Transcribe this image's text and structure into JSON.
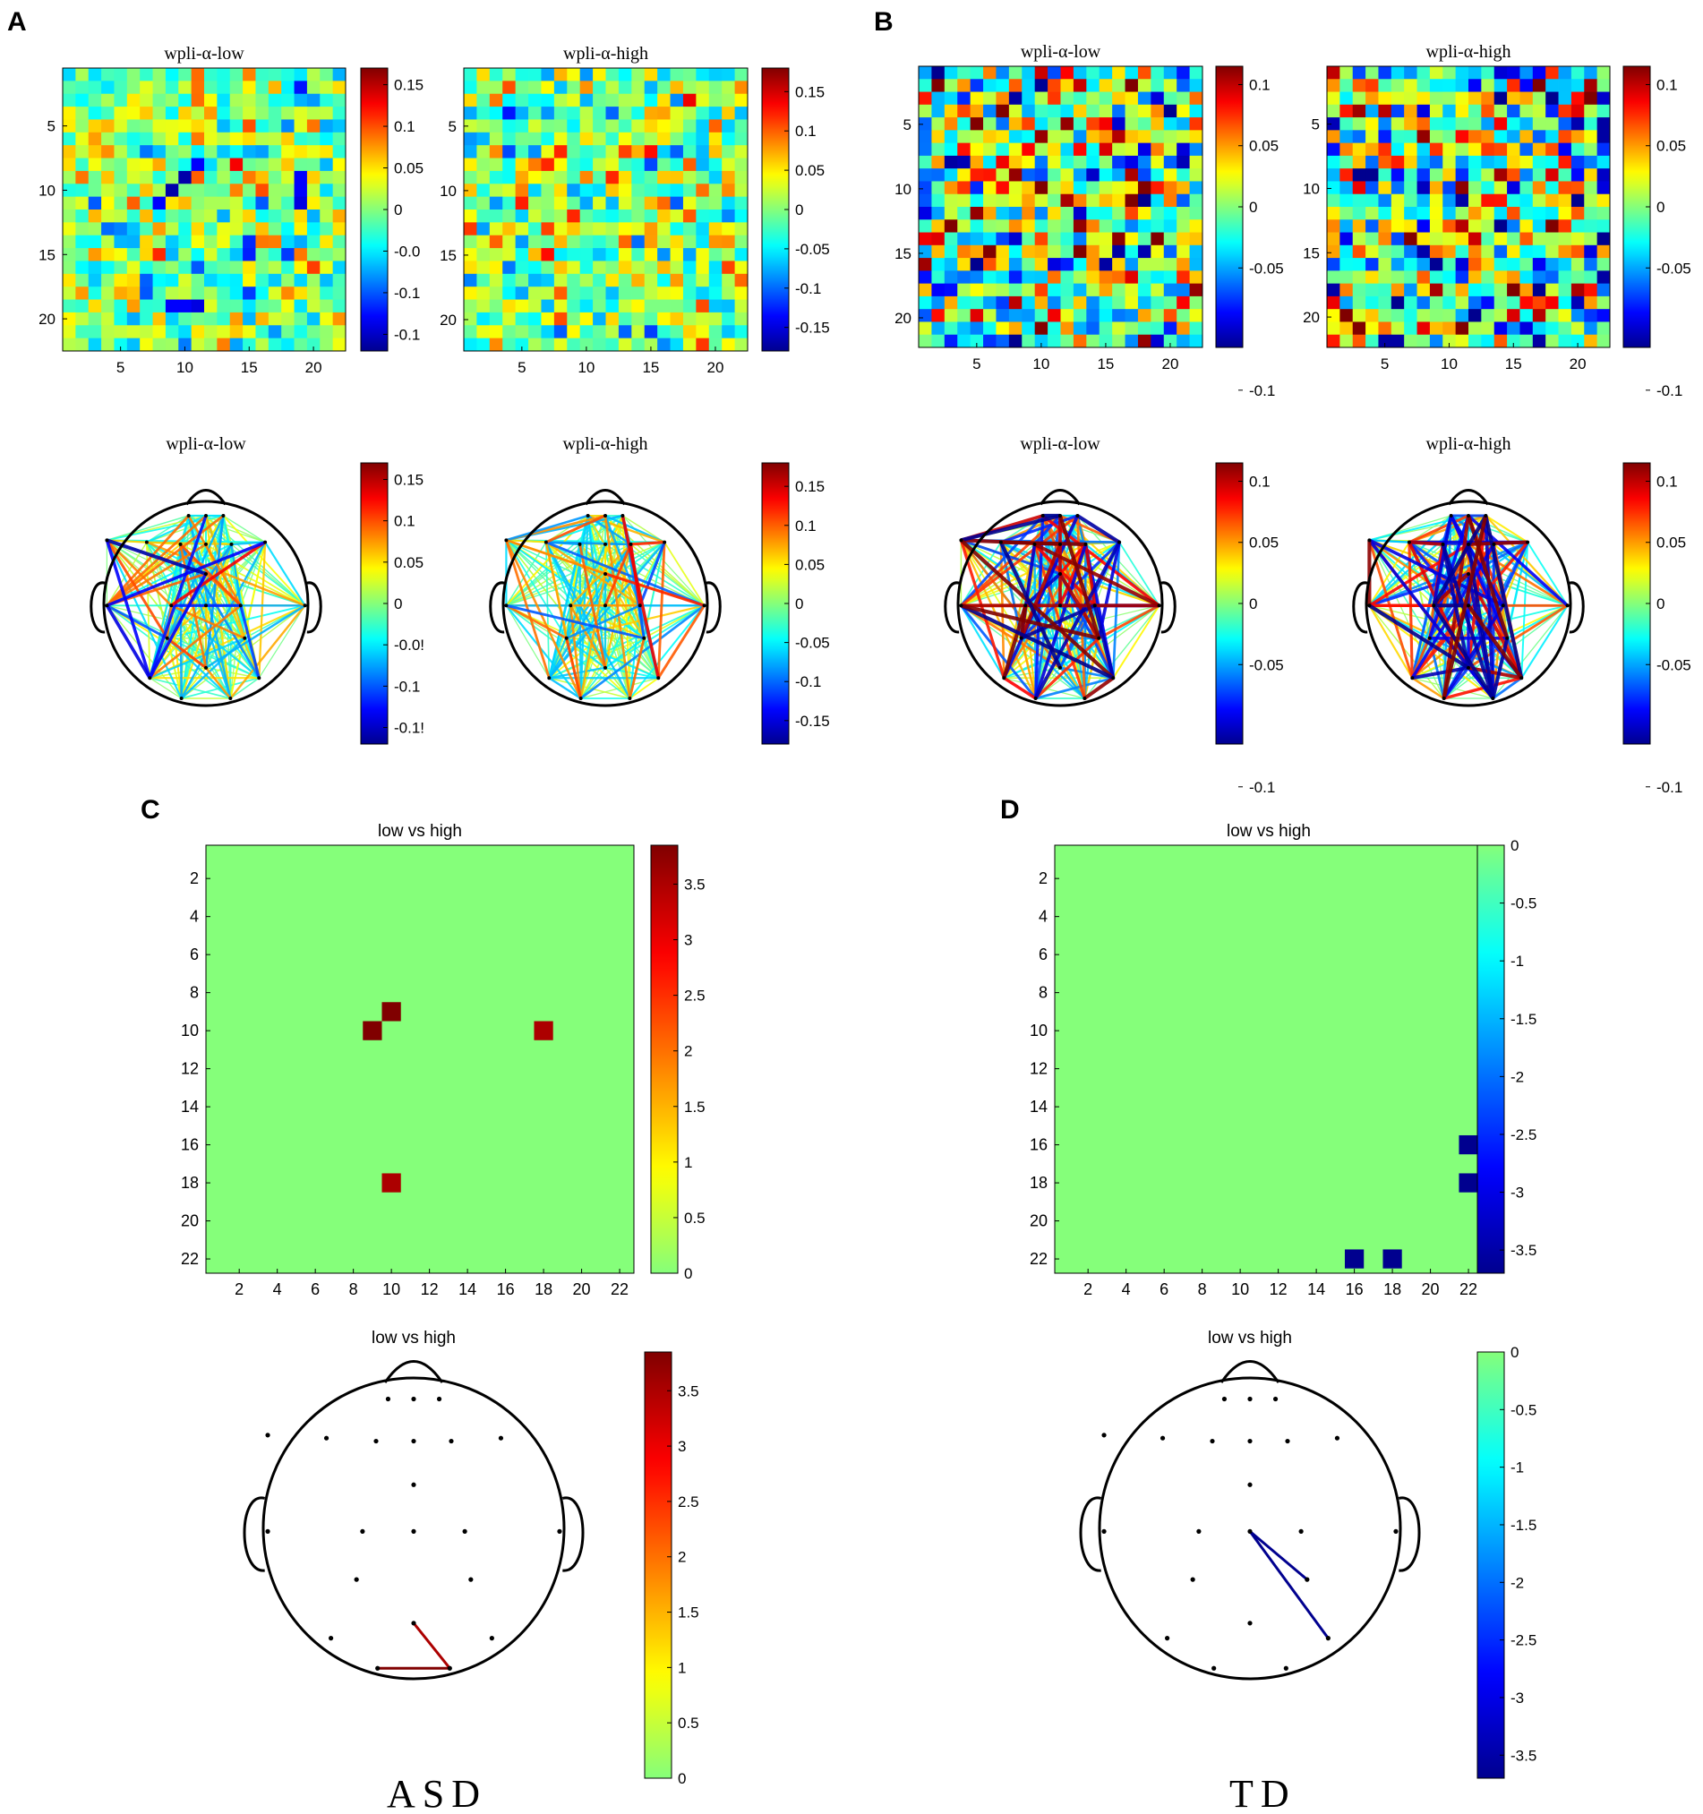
{
  "panels": {
    "A": "A",
    "B": "B",
    "C": "C",
    "D": "D"
  },
  "captions": {
    "asd": "ASD",
    "td": "TD"
  },
  "colormap": [
    "#00008f",
    "#0000ff",
    "#00ffff",
    "#ffff00",
    "#ff0000",
    "#800000"
  ],
  "chart_data": [
    {
      "id": "A-low-matrix",
      "panel": "A",
      "type": "heatmap",
      "title": "wpli-α-low",
      "n": 22,
      "x_ticks": [
        5,
        10,
        15,
        20
      ],
      "y_ticks": [
        5,
        10,
        15,
        20
      ],
      "clim": [
        -0.17,
        0.17
      ],
      "seed": 11,
      "scale": 0.045,
      "colorbar_ticks": [
        "0.15",
        "0.1",
        "0.05",
        "0",
        "-0.0",
        "-0.1",
        "-0.1"
      ],
      "highlights": [
        {
          "row": 9,
          "col": 8,
          "value": -0.16
        },
        {
          "row": 10,
          "col": 7,
          "value": -0.13
        },
        {
          "row": 9,
          "col": 18,
          "value": -0.14
        },
        {
          "row": 10,
          "col": 18,
          "value": -0.14
        },
        {
          "row": 18,
          "col": 8,
          "value": -0.13
        },
        {
          "row": 18,
          "col": 9,
          "value": -0.13
        },
        {
          "row": 14,
          "col": 14,
          "value": -0.12
        },
        {
          "row": 14,
          "col": 17,
          "value": -0.11
        },
        {
          "row": 15,
          "col": 10,
          "value": -0.1
        }
      ]
    },
    {
      "id": "A-high-matrix",
      "panel": "A",
      "type": "heatmap",
      "title": "wpli-α-high",
      "n": 22,
      "x_ticks": [
        5,
        10,
        15,
        20
      ],
      "y_ticks": [
        5,
        10,
        15,
        20
      ],
      "clim": [
        -0.18,
        0.18
      ],
      "seed": 23,
      "scale": 0.05,
      "colorbar_ticks": [
        "0.15",
        "0.1",
        "0.05",
        "0",
        "-0.05",
        "-0.1",
        "-0.15"
      ],
      "highlights": [
        {
          "row": 6,
          "col": 7,
          "value": 0.12
        },
        {
          "row": 6,
          "col": 12,
          "value": 0.11
        },
        {
          "row": 11,
          "col": 8,
          "value": 0.12
        },
        {
          "row": 14,
          "col": 6,
          "value": 0.13
        },
        {
          "row": 17,
          "col": 7,
          "value": 0.1
        }
      ]
    },
    {
      "id": "B-low-matrix",
      "panel": "B",
      "type": "heatmap",
      "title": "wpli-α-low",
      "n": 22,
      "x_ticks": [
        5,
        10,
        15,
        20
      ],
      "y_ticks": [
        5,
        10,
        15,
        20
      ],
      "clim": [
        -0.115,
        0.115
      ],
      "seed": 37,
      "scale": 0.055,
      "colorbar_ticks": [
        "0.1",
        "0.05",
        "0",
        "-0.05",
        "-0.1"
      ],
      "highlights": [
        {
          "row": 4,
          "col": 11,
          "value": 0.11
        },
        {
          "row": 11,
          "col": 4,
          "value": 0.11
        },
        {
          "row": 21,
          "col": 17,
          "value": 0.11
        },
        {
          "row": 2,
          "col": 7,
          "value": -0.11
        },
        {
          "row": 14,
          "col": 15,
          "value": -0.11
        }
      ]
    },
    {
      "id": "B-high-matrix",
      "panel": "B",
      "type": "heatmap",
      "title": "wpli-α-high",
      "n": 22,
      "x_ticks": [
        5,
        10,
        15,
        20
      ],
      "y_ticks": [
        5,
        10,
        15,
        20
      ],
      "clim": [
        -0.115,
        0.115
      ],
      "seed": 53,
      "scale": 0.055,
      "colorbar_ticks": [
        "0.1",
        "0.05",
        "0",
        "-0.05",
        "-0.1"
      ],
      "highlights": [
        {
          "row": 0,
          "col": 0,
          "value": 0.1
        },
        {
          "row": 4,
          "col": 21,
          "value": -0.11
        },
        {
          "row": 21,
          "col": 5,
          "value": -0.11
        },
        {
          "row": 21,
          "col": 16,
          "value": -0.11
        }
      ]
    },
    {
      "id": "A-low-head",
      "panel": "A",
      "type": "network",
      "title": "wpli-α-low",
      "clim": [
        -0.17,
        0.17
      ],
      "seed": 11,
      "scale": 0.045,
      "colorbar_ticks": [
        "0.15",
        "0.1",
        "0.05",
        "0",
        "-0.0!",
        "-0.1",
        "-0.1!"
      ]
    },
    {
      "id": "A-high-head",
      "panel": "A",
      "type": "network",
      "title": "wpli-α-high",
      "clim": [
        -0.18,
        0.18
      ],
      "seed": 23,
      "scale": 0.05,
      "colorbar_ticks": [
        "0.15",
        "0.1",
        "0.05",
        "0",
        "-0.05",
        "-0.1",
        "-0.15"
      ]
    },
    {
      "id": "B-low-head",
      "panel": "B",
      "type": "network",
      "title": "wpli-α-low",
      "clim": [
        -0.115,
        0.115
      ],
      "seed": 37,
      "scale": 0.055,
      "colorbar_ticks": [
        "0.1",
        "0.05",
        "0",
        "-0.05",
        "-0.1"
      ]
    },
    {
      "id": "B-high-head",
      "panel": "B",
      "type": "network",
      "title": "wpli-α-high",
      "clim": [
        -0.115,
        0.115
      ],
      "seed": 53,
      "scale": 0.055,
      "colorbar_ticks": [
        "0.1",
        "0.05",
        "0",
        "-0.05",
        "-0.1"
      ]
    },
    {
      "id": "C-matrix",
      "panel": "C",
      "type": "heatmap",
      "title": "low vs high",
      "n": 22,
      "x_ticks": [
        2,
        4,
        6,
        8,
        10,
        12,
        14,
        16,
        18,
        20,
        22
      ],
      "y_ticks": [
        2,
        4,
        6,
        8,
        10,
        12,
        14,
        16,
        18,
        20,
        22
      ],
      "clim": [
        0,
        3.85
      ],
      "colormap": "upper",
      "colorbar_ticks": [
        "3.5",
        "3",
        "2.5",
        "2",
        "1.5",
        "1",
        "0.5",
        "0"
      ],
      "cells": [
        {
          "row": 9,
          "col": 10,
          "value": 3.85
        },
        {
          "row": 10,
          "col": 9,
          "value": 3.85
        },
        {
          "row": 10,
          "col": 18,
          "value": 3.5
        },
        {
          "row": 18,
          "col": 10,
          "value": 3.5
        }
      ]
    },
    {
      "id": "D-matrix",
      "panel": "D",
      "type": "heatmap",
      "title": "low vs high",
      "n": 22,
      "x_ticks": [
        2,
        4,
        6,
        8,
        10,
        12,
        14,
        16,
        18,
        20,
        22
      ],
      "y_ticks": [
        2,
        4,
        6,
        8,
        10,
        12,
        14,
        16,
        18,
        20,
        22
      ],
      "clim": [
        -3.7,
        0
      ],
      "colormap": "lower",
      "colorbar_ticks": [
        "0",
        "-0.5",
        "-1",
        "-1.5",
        "-2",
        "-2.5",
        "-3",
        "-3.5"
      ],
      "cells": [
        {
          "row": 16,
          "col": 22,
          "value": -3.7
        },
        {
          "row": 18,
          "col": 22,
          "value": -3.7
        },
        {
          "row": 22,
          "col": 16,
          "value": -3.7
        },
        {
          "row": 22,
          "col": 18,
          "value": -3.7
        }
      ]
    },
    {
      "id": "C-head",
      "panel": "C",
      "type": "network",
      "title": "low vs high",
      "clim": [
        0,
        3.85
      ],
      "colormap": "upper",
      "colorbar_ticks": [
        "3.5",
        "3",
        "2.5",
        "2",
        "1.5",
        "1",
        "0.5",
        "0"
      ],
      "edges": [
        {
          "from": 19,
          "to": 21,
          "value": 3.5
        },
        {
          "from": 20,
          "to": 21,
          "value": 3.85
        }
      ]
    },
    {
      "id": "D-head",
      "panel": "D",
      "type": "network",
      "title": "low vs high",
      "clim": [
        -3.7,
        0
      ],
      "colormap": "lower",
      "colorbar_ticks": [
        "0",
        "-0.5",
        "-1",
        "-1.5",
        "-2",
        "-2.5",
        "-3",
        "-3.5"
      ],
      "edges": [
        {
          "from": 12,
          "to": 17,
          "value": -3.7
        },
        {
          "from": 12,
          "to": 16,
          "value": -3.7
        }
      ]
    }
  ]
}
